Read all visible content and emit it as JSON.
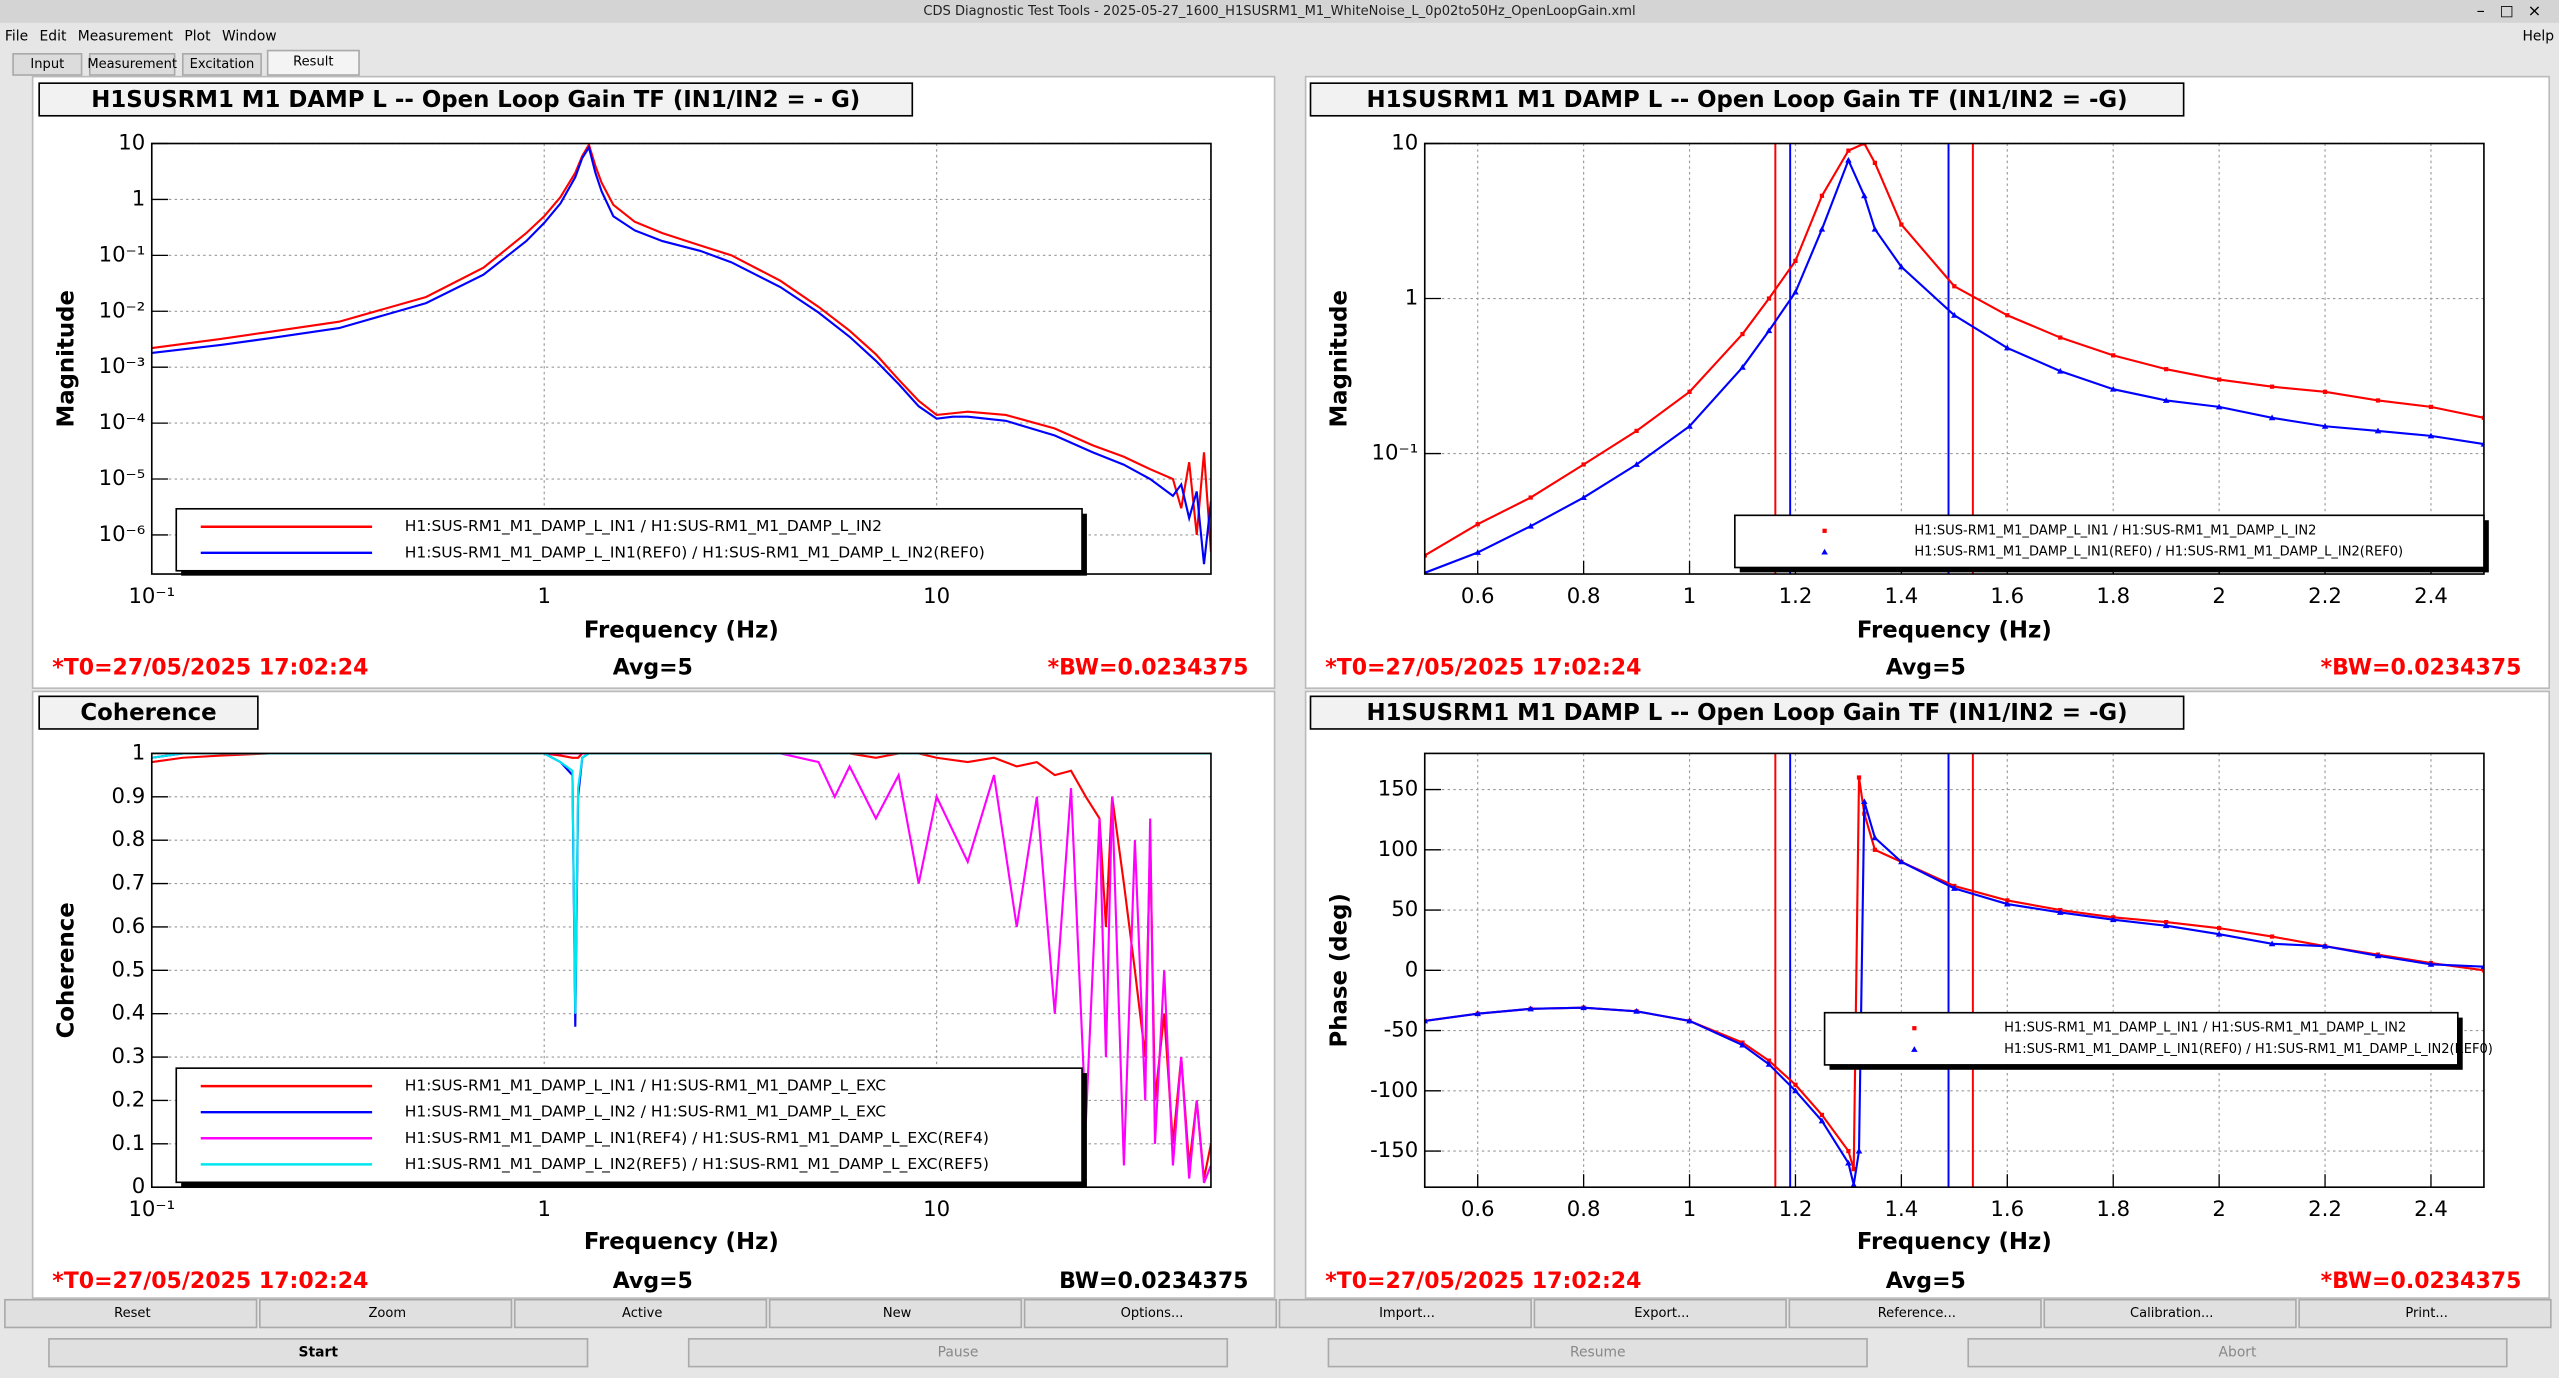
{
  "window": {
    "title": "CDS Diagnostic Test Tools - 2025-05-27_1600_H1SUSRM1_M1_WhiteNoise_L_0p02to50Hz_OpenLoopGain.xml",
    "menu": [
      "File",
      "Edit",
      "Measurement",
      "Plot",
      "Window"
    ],
    "help": "Help",
    "tabs": [
      "Input",
      "Measurement",
      "Excitation",
      "Result"
    ],
    "buttons": [
      "Reset",
      "Zoom",
      "Active",
      "New",
      "Options...",
      "Import...",
      "Export...",
      "Reference...",
      "Calibration...",
      "Print..."
    ],
    "controls": [
      "Start",
      "Pause",
      "Resume",
      "Abort"
    ]
  },
  "chart_data": [
    {
      "type": "line",
      "title": "H1SUSRM1 M1 DAMP L -- Open Loop Gain TF (IN1/IN2 = - G)",
      "xlabel": "Frequency (Hz)",
      "ylabel": "Magnitude",
      "xlog": true,
      "ylog": true,
      "grid": true,
      "xlim": [
        0.1,
        50
      ],
      "ylim": [
        2e-07,
        10
      ],
      "xticks": [
        {
          "value": 0.1,
          "label": "10⁻¹"
        },
        1,
        10
      ],
      "yticks": [
        10,
        1,
        {
          "value": 0.1,
          "label": "10⁻¹"
        },
        {
          "value": 0.01,
          "label": "10⁻²"
        },
        {
          "value": 0.001,
          "label": "10⁻³"
        },
        {
          "value": 0.0001,
          "label": "10⁻⁴"
        },
        {
          "value": 1e-05,
          "label": "10⁻⁵"
        },
        {
          "value": 1e-06,
          "label": "10⁻⁶"
        }
      ],
      "x": [
        0.1,
        0.15,
        0.2,
        0.3,
        0.5,
        0.7,
        0.9,
        1.0,
        1.1,
        1.2,
        1.25,
        1.3,
        1.35,
        1.4,
        1.5,
        1.7,
        2,
        2.5,
        3,
        4,
        5,
        6,
        7,
        8,
        9,
        10,
        11,
        12,
        15,
        20,
        25,
        30,
        35,
        40,
        42,
        44,
        46,
        48,
        50
      ],
      "series": [
        {
          "name": "H1:SUS-RM1_M1_DAMP_L_IN1 / H1:SUS-RM1_M1_DAMP_L_IN2",
          "color": "#ff0000",
          "values": [
            0.0022,
            0.0032,
            0.0043,
            0.0065,
            0.018,
            0.06,
            0.25,
            0.5,
            1.1,
            3,
            6,
            9.5,
            4,
            2,
            0.8,
            0.4,
            0.25,
            0.15,
            0.1,
            0.035,
            0.012,
            0.0045,
            0.0017,
            0.0006,
            0.00025,
            0.00014,
            0.00015,
            0.00016,
            0.00014,
            8e-05,
            4e-05,
            2.5e-05,
            1.5e-05,
            1e-05,
            3e-06,
            2e-05,
            1e-06,
            3e-05,
            5e-07
          ]
        },
        {
          "name": "H1:SUS-RM1_M1_DAMP_L_IN1(REF0) / H1:SUS-RM1_M1_DAMP_L_IN2(REF0)",
          "color": "#0000ff",
          "values": [
            0.0018,
            0.0025,
            0.0033,
            0.005,
            0.014,
            0.045,
            0.18,
            0.38,
            0.85,
            2.5,
            5.5,
            8.5,
            3,
            1.4,
            0.5,
            0.28,
            0.18,
            0.12,
            0.075,
            0.027,
            0.0095,
            0.0035,
            0.0013,
            0.0005,
            0.0002,
            0.00012,
            0.00013,
            0.00013,
            0.00011,
            6e-05,
            3e-05,
            1.8e-05,
            1e-05,
            5e-06,
            8e-06,
            2e-06,
            6e-06,
            3e-07,
            4e-06
          ]
        }
      ],
      "annotations": [
        {
          "text": "*T0=27/05/2025 17:02:24",
          "color": "#ff0000"
        },
        {
          "text": "Avg=5",
          "color": "#000000"
        },
        {
          "text": "*BW=0.0234375",
          "color": "#ff0000"
        }
      ]
    },
    {
      "type": "line",
      "title": "H1SUSRM1 M1 DAMP L -- Open Loop Gain TF (IN1/IN2 = -G)",
      "xlabel": "Frequency (Hz)",
      "ylabel": "Magnitude",
      "xlog": false,
      "ylog": true,
      "grid": true,
      "xlim": [
        0.5,
        2.5
      ],
      "ylim": [
        0.0167,
        10
      ],
      "xticks": [
        0.6,
        0.8,
        1,
        1.2,
        1.4,
        1.6,
        1.8,
        2,
        2.2,
        2.4
      ],
      "yticks": [
        10,
        1,
        {
          "value": 0.1,
          "label": "10⁻¹"
        }
      ],
      "x": [
        0.5,
        0.6,
        0.7,
        0.8,
        0.9,
        1.0,
        1.1,
        1.15,
        1.2,
        1.25,
        1.3,
        1.33,
        1.35,
        1.4,
        1.5,
        1.6,
        1.7,
        1.8,
        1.9,
        2.0,
        2.1,
        2.2,
        2.3,
        2.4,
        2.5
      ],
      "series": [
        {
          "name": "H1:SUS-RM1_M1_DAMP_L_IN1 / H1:SUS-RM1_M1_DAMP_L_IN2",
          "color": "#ff0000",
          "marker": "square",
          "values": [
            0.022,
            0.035,
            0.052,
            0.085,
            0.14,
            0.25,
            0.59,
            1.0,
            1.75,
            4.6,
            9,
            10,
            7.5,
            3,
            1.2,
            0.78,
            0.56,
            0.43,
            0.35,
            0.3,
            0.27,
            0.25,
            0.22,
            0.2,
            0.17
          ]
        },
        {
          "name": "H1:SUS-RM1_M1_DAMP_L_IN1(REF0) / H1:SUS-RM1_M1_DAMP_L_IN2(REF0)",
          "color": "#0000ff",
          "marker": "triangle",
          "values": [
            0.017,
            0.023,
            0.034,
            0.052,
            0.085,
            0.15,
            0.36,
            0.62,
            1.1,
            2.8,
            7.8,
            4.6,
            2.8,
            1.6,
            0.78,
            0.48,
            0.34,
            0.26,
            0.22,
            0.2,
            0.17,
            0.15,
            0.14,
            0.13,
            0.115
          ]
        }
      ],
      "cursors": [
        {
          "x": 1.162,
          "color": "#ff0000"
        },
        {
          "x": 1.19,
          "color": "#0000ff"
        },
        {
          "x": 1.489,
          "color": "#0000ff"
        },
        {
          "x": 1.535,
          "color": "#ff0000"
        }
      ],
      "annotations": [
        {
          "text": "*T0=27/05/2025 17:02:24",
          "color": "#ff0000"
        },
        {
          "text": "Avg=5",
          "color": "#000000"
        },
        {
          "text": "*BW=0.0234375",
          "color": "#ff0000"
        }
      ]
    },
    {
      "type": "line",
      "title": "Coherence",
      "xlabel": "Frequency (Hz)",
      "ylabel": "Coherence",
      "xlog": true,
      "ylog": false,
      "grid": true,
      "xlim": [
        0.1,
        50
      ],
      "ylim": [
        0,
        1
      ],
      "xticks": [
        {
          "value": 0.1,
          "label": "10⁻¹"
        },
        1,
        10
      ],
      "yticks": [
        0,
        0.1,
        0.2,
        0.3,
        0.4,
        0.5,
        0.6,
        0.7,
        0.8,
        0.9,
        1
      ],
      "x": [
        0.1,
        0.12,
        0.15,
        0.2,
        0.3,
        0.5,
        0.7,
        1,
        1.1,
        1.18,
        1.2,
        1.22,
        1.25,
        1.3,
        1.5,
        2,
        3,
        4,
        5,
        5.5,
        6,
        7,
        8,
        9,
        10,
        12,
        14,
        16,
        18,
        20,
        22,
        24,
        26,
        27,
        28,
        30,
        32,
        34,
        35,
        36,
        38,
        40,
        42,
        44,
        46,
        48,
        50
      ],
      "series": [
        {
          "name": "H1:SUS-RM1_M1_DAMP_L_IN1 / H1:SUS-RM1_M1_DAMP_L_EXC",
          "color": "#ff0000",
          "values": [
            0.98,
            0.99,
            0.995,
            1,
            1,
            1,
            1,
            1,
            0.995,
            0.99,
            0.99,
            0.99,
            1,
            1,
            1,
            1,
            1,
            1,
            1,
            1,
            1,
            0.99,
            1,
            1,
            0.99,
            0.98,
            0.99,
            0.97,
            0.98,
            0.95,
            0.96,
            0.9,
            0.85,
            0.6,
            0.9,
            0.7,
            0.5,
            0.3,
            0.8,
            0.2,
            0.4,
            0.1,
            0.3,
            0.05,
            0.2,
            0.02,
            0.1
          ]
        },
        {
          "name": "H1:SUS-RM1_M1_DAMP_L_IN2 / H1:SUS-RM1_M1_DAMP_L_EXC",
          "color": "#0000ff",
          "values": [
            0.99,
            1,
            1,
            1,
            1,
            1,
            1,
            1,
            0.98,
            0.95,
            0.37,
            0.9,
            0.99,
            1,
            1,
            1,
            1,
            1,
            1,
            1,
            1,
            1,
            1,
            1,
            1,
            1,
            1,
            1,
            1,
            1,
            1,
            1,
            1,
            1,
            1,
            1,
            1,
            1,
            1,
            1,
            1,
            1,
            1,
            1,
            1,
            1,
            1
          ]
        },
        {
          "name": "H1:SUS-RM1_M1_DAMP_L_IN1(REF4) / H1:SUS-RM1_M1_DAMP_L_EXC(REF4)",
          "color": "#ff00ff",
          "values": [
            0.99,
            1,
            1,
            1,
            1,
            1,
            1,
            1,
            1,
            1,
            1,
            1,
            1,
            1,
            1,
            1,
            1,
            1,
            0.98,
            0.9,
            0.97,
            0.85,
            0.95,
            0.7,
            0.9,
            0.75,
            0.95,
            0.6,
            0.9,
            0.4,
            0.92,
            0.15,
            0.85,
            0.3,
            0.9,
            0.05,
            0.8,
            0.2,
            0.85,
            0.1,
            0.5,
            0.05,
            0.3,
            0.02,
            0.2,
            0.01,
            0.05
          ]
        },
        {
          "name": "H1:SUS-RM1_M1_DAMP_L_IN2(REF5) / H1:SUS-RM1_M1_DAMP_L_EXC(REF5)",
          "color": "#00e5ee",
          "values": [
            0.99,
            1,
            1,
            1,
            1,
            1,
            1,
            1,
            0.98,
            0.96,
            0.4,
            0.92,
            0.99,
            1,
            1,
            1,
            1,
            1,
            1,
            1,
            1,
            1,
            1,
            1,
            1,
            1,
            1,
            1,
            1,
            1,
            1,
            1,
            1,
            1,
            1,
            1,
            1,
            1,
            1,
            1,
            1,
            1,
            1,
            1,
            1,
            1,
            1
          ]
        }
      ],
      "annotations": [
        {
          "text": "*T0=27/05/2025 17:02:24",
          "color": "#ff0000"
        },
        {
          "text": "Avg=5",
          "color": "#000000"
        },
        {
          "text": "BW=0.0234375",
          "color": "#000000"
        }
      ]
    },
    {
      "type": "line",
      "title": "H1SUSRM1 M1 DAMP L -- Open Loop Gain TF (IN1/IN2 = -G)",
      "xlabel": "Frequency (Hz)",
      "ylabel": "Phase (deg)",
      "xlog": false,
      "ylog": false,
      "grid": true,
      "xlim": [
        0.5,
        2.5
      ],
      "ylim": [
        -180,
        180
      ],
      "xticks": [
        0.6,
        0.8,
        1,
        1.2,
        1.4,
        1.6,
        1.8,
        2,
        2.2,
        2.4
      ],
      "yticks": [
        -150,
        -100,
        -50,
        0,
        50,
        100,
        150
      ],
      "x": [
        0.5,
        0.6,
        0.7,
        0.8,
        0.9,
        1.0,
        1.1,
        1.15,
        1.2,
        1.25,
        1.3,
        1.31,
        1.32,
        1.33,
        1.35,
        1.4,
        1.5,
        1.6,
        1.7,
        1.8,
        1.9,
        2.0,
        2.1,
        2.2,
        2.3,
        2.4,
        2.5
      ],
      "series": [
        {
          "name": "H1:SUS-RM1_M1_DAMP_L_IN1 / H1:SUS-RM1_M1_DAMP_L_IN2",
          "color": "#ff0000",
          "marker": "square",
          "values": [
            -42,
            -36,
            -32,
            -31,
            -34,
            -42,
            -60,
            -75,
            -95,
            -120,
            -150,
            -165,
            160,
            130,
            100,
            90,
            70,
            58,
            50,
            44,
            40,
            35,
            28,
            20,
            13,
            6,
            0
          ]
        },
        {
          "name": "H1:SUS-RM1_M1_DAMP_L_IN1(REF0) / H1:SUS-RM1_M1_DAMP_L_IN2(REF0)",
          "color": "#0000ff",
          "marker": "triangle",
          "values": [
            -42,
            -36,
            -32,
            -31,
            -34,
            -42,
            -62,
            -78,
            -100,
            -125,
            -160,
            -178,
            -150,
            140,
            110,
            90,
            68,
            55,
            48,
            42,
            37,
            30,
            22,
            20,
            12,
            5,
            3
          ]
        }
      ],
      "cursors": [
        {
          "x": 1.162,
          "color": "#ff0000"
        },
        {
          "x": 1.19,
          "color": "#0000ff"
        },
        {
          "x": 1.489,
          "color": "#0000ff"
        },
        {
          "x": 1.535,
          "color": "#ff0000"
        }
      ],
      "annotations": [
        {
          "text": "*T0=27/05/2025 17:02:24",
          "color": "#ff0000"
        },
        {
          "text": "Avg=5",
          "color": "#000000"
        },
        {
          "text": "*BW=0.0234375",
          "color": "#ff0000"
        }
      ]
    }
  ]
}
